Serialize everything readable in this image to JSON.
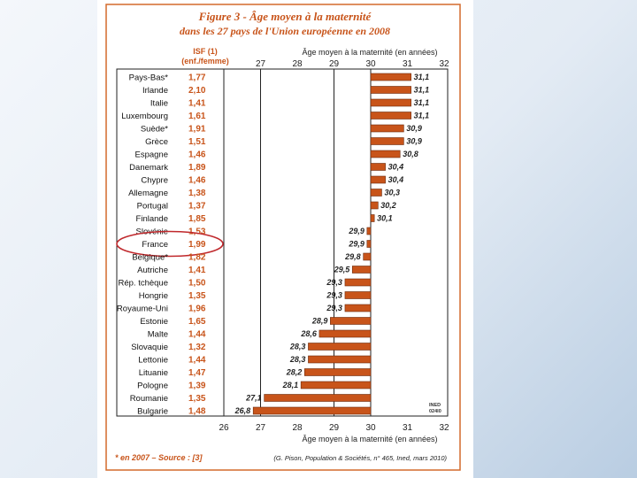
{
  "chart_data": {
    "type": "bar",
    "title_line1": "Figure 3 - Âge moyen à la maternité",
    "title_line2": "dans les 27 pays de l'Union européenne en 2008",
    "isf_header_line1": "ISF (1)",
    "isf_header_line2": "(enf./femme)",
    "xlabel_top": "Âge moyen à la maternité (en années)",
    "xlabel_bottom": "Âge moyen à la maternité (en années)",
    "xlim": [
      26,
      32
    ],
    "xticks_top": [
      "27",
      "28",
      "29",
      "30",
      "31",
      "32"
    ],
    "xticks_bottom": [
      "26",
      "27",
      "28",
      "29",
      "30",
      "31",
      "32"
    ],
    "reference_lines": [
      27,
      29,
      30
    ],
    "bar_color": "#c8541a",
    "highlight_color": "#c0282c",
    "highlighted": "France",
    "categories": [
      "Pays-Bas*",
      "Irlande",
      "Italie",
      "Luxembourg",
      "Suède*",
      "Grèce",
      "Espagne",
      "Danemark",
      "Chypre",
      "Allemagne",
      "Portugal",
      "Finlande",
      "Slovénie",
      "France",
      "Belgique*",
      "Autriche",
      "Rép. tchèque",
      "Hongrie",
      "Royaume-Uni",
      "Estonie",
      "Malte",
      "Slovaquie",
      "Lettonie",
      "Lituanie",
      "Pologne",
      "Roumanie",
      "Bulgarie"
    ],
    "isf": [
      "1,77",
      "2,10",
      "1,41",
      "1,61",
      "1,91",
      "1,51",
      "1,46",
      "1,89",
      "1,46",
      "1,38",
      "1,37",
      "1,85",
      "1,53",
      "1,99",
      "1,82",
      "1,41",
      "1,50",
      "1,35",
      "1,96",
      "1,65",
      "1,44",
      "1,32",
      "1,44",
      "1,47",
      "1,39",
      "1,35",
      "1,48"
    ],
    "values": [
      31.1,
      31.1,
      31.1,
      31.1,
      30.9,
      30.9,
      30.8,
      30.4,
      30.4,
      30.3,
      30.2,
      30.1,
      29.9,
      29.9,
      29.8,
      29.5,
      29.3,
      29.3,
      29.3,
      28.9,
      28.6,
      28.3,
      28.3,
      28.2,
      28.1,
      27.1,
      26.8
    ],
    "value_labels": [
      "31,1",
      "31,1",
      "31,1",
      "31,1",
      "30,9",
      "30,9",
      "30,8",
      "30,4",
      "30,4",
      "30,3",
      "30,2",
      "30,1",
      "29,9",
      "29,9",
      "29,8",
      "29,5",
      "29,3",
      "29,3",
      "29,3",
      "28,9",
      "28,6",
      "28,3",
      "28,3",
      "28,2",
      "28,1",
      "27,1",
      "26,8"
    ],
    "footnote": "* en 2007 – Source : [3]",
    "source": "(G. Pison, Population & Sociétés, n° 465, Ined, mars 2010)",
    "credit_line1": "INED",
    "credit_line2": "024I0"
  }
}
